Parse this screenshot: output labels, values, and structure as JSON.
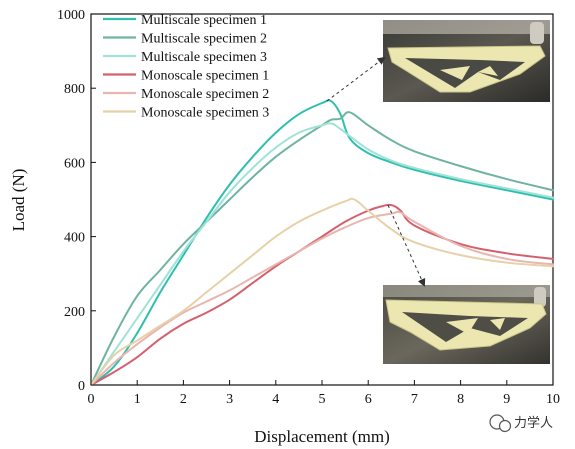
{
  "chart_data": {
    "type": "line",
    "title": "",
    "xlabel": "Displacement (mm)",
    "ylabel": "Load (N)",
    "xlim": [
      0,
      10
    ],
    "ylim": [
      0,
      1000
    ],
    "xticks": [
      "0",
      "1",
      "2",
      "3",
      "4",
      "5",
      "6",
      "7",
      "8",
      "9",
      "10"
    ],
    "yticks": [
      "0",
      "200",
      "400",
      "600",
      "800",
      "1000"
    ],
    "grid": false,
    "legend": "top-left",
    "series": [
      {
        "name": "Multiscale specimen 1",
        "color": "#2fbfae",
        "x": [
          0,
          0.5,
          1,
          1.5,
          2,
          2.5,
          3,
          3.5,
          4,
          4.5,
          5,
          5.2,
          5.4,
          5.6,
          6,
          6.5,
          7,
          8,
          9,
          10
        ],
        "y": [
          0,
          50,
          140,
          250,
          350,
          450,
          540,
          615,
          680,
          730,
          760,
          765,
          730,
          665,
          625,
          600,
          580,
          550,
          525,
          500
        ]
      },
      {
        "name": "Multiscale specimen 2",
        "color": "#6fb3a1",
        "x": [
          0,
          0.5,
          1,
          1.5,
          2,
          2.5,
          3,
          3.5,
          4,
          4.5,
          5,
          5.2,
          5.4,
          5.6,
          6,
          6.5,
          7,
          8,
          9,
          10
        ],
        "y": [
          0,
          130,
          240,
          310,
          380,
          440,
          500,
          560,
          615,
          660,
          700,
          715,
          718,
          735,
          700,
          660,
          630,
          590,
          555,
          525
        ]
      },
      {
        "name": "Multiscale specimen 3",
        "color": "#9fe3d7",
        "x": [
          0,
          0.5,
          1,
          1.5,
          2,
          2.5,
          3,
          3.5,
          4,
          4.5,
          5,
          5.2,
          5.4,
          6,
          6.5,
          7,
          8,
          9,
          10
        ],
        "y": [
          0,
          90,
          180,
          270,
          360,
          440,
          520,
          585,
          640,
          680,
          700,
          705,
          690,
          635,
          605,
          585,
          555,
          530,
          505
        ]
      },
      {
        "name": "Monoscale specimen 1",
        "color": "#d4606e",
        "x": [
          0,
          0.5,
          1,
          1.5,
          2,
          2.5,
          3,
          3.5,
          4,
          4.5,
          5,
          5.5,
          6,
          6.3,
          6.5,
          6.7,
          7,
          8,
          9,
          10
        ],
        "y": [
          0,
          35,
          75,
          125,
          165,
          195,
          230,
          275,
          320,
          360,
          400,
          440,
          470,
          482,
          485,
          470,
          430,
          380,
          355,
          340
        ]
      },
      {
        "name": "Monoscale specimen 2",
        "color": "#e8b6ae",
        "x": [
          0,
          0.5,
          1,
          1.5,
          2,
          2.5,
          3,
          3.5,
          4,
          4.5,
          5,
          5.5,
          6,
          6.5,
          6.7,
          7,
          8,
          9,
          10
        ],
        "y": [
          0,
          60,
          110,
          155,
          195,
          225,
          255,
          290,
          325,
          360,
          395,
          425,
          450,
          462,
          465,
          440,
          375,
          340,
          325
        ]
      },
      {
        "name": "Monoscale specimen 3",
        "color": "#e8d0a8",
        "x": [
          0,
          0.5,
          1,
          1.5,
          2,
          2.5,
          3,
          3.5,
          4,
          4.5,
          5,
          5.5,
          5.7,
          6,
          6.5,
          7,
          8,
          9,
          10
        ],
        "y": [
          0,
          80,
          120,
          160,
          200,
          250,
          300,
          350,
          400,
          440,
          470,
          495,
          500,
          470,
          420,
          385,
          350,
          330,
          320
        ]
      }
    ]
  },
  "watermark": {
    "icon": "wechat-icon",
    "text": "力学人"
  }
}
